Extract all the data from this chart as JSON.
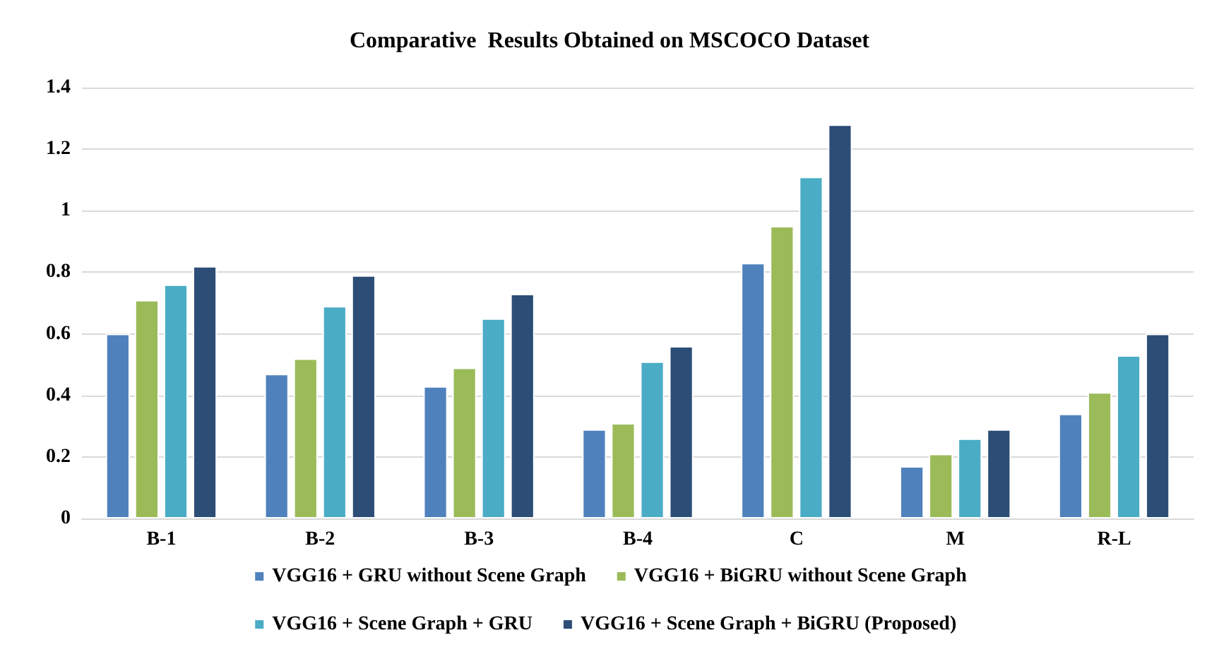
{
  "chart_data": {
    "type": "bar",
    "title": "Comparative  Results Obtained on MSCOCO Dataset",
    "categories": [
      "B-1",
      "B-2",
      "B-3",
      "B-4",
      "C",
      "M",
      "R-L"
    ],
    "series": [
      {
        "name": "VGG16 + GRU without Scene Graph",
        "color": "#4f81bd",
        "values": [
          0.6,
          0.47,
          0.43,
          0.29,
          0.83,
          0.17,
          0.34
        ]
      },
      {
        "name": "VGG16 + BiGRU without Scene Graph",
        "color": "#9bbb59",
        "values": [
          0.71,
          0.52,
          0.49,
          0.31,
          0.95,
          0.21,
          0.41
        ]
      },
      {
        "name": "VGG16 + Scene Graph + GRU",
        "color": "#4bacc6",
        "values": [
          0.76,
          0.69,
          0.65,
          0.51,
          1.11,
          0.26,
          0.53
        ]
      },
      {
        "name": "VGG16 + Scene Graph + BiGRU (Proposed)",
        "color": "#2c4d75",
        "values": [
          0.82,
          0.79,
          0.73,
          0.56,
          1.28,
          0.29,
          0.6
        ]
      }
    ],
    "ylim": [
      0,
      1.4
    ],
    "yticks": [
      0,
      0.2,
      0.4,
      0.6,
      0.8,
      1,
      1.2,
      1.4
    ],
    "grid": "y",
    "legend": "bottom"
  }
}
